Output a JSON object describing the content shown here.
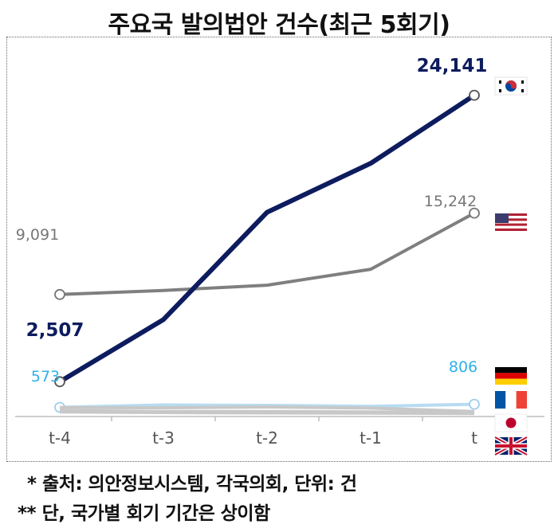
{
  "title": "주요국 발의법안 건수(최근 5회기)",
  "notes": {
    "source": "* 출처: 의안정보시스템, 각국의회, 단위: 건",
    "caveat": "** 단, 국가별 회기 기간은 상이함"
  },
  "chart_data": {
    "type": "line",
    "categories": [
      "t-4",
      "t-3",
      "t-2",
      "t-1",
      "t"
    ],
    "ylim": [
      0,
      25500
    ],
    "grid": false,
    "series": [
      {
        "name": "Korea",
        "flag": "korea-flag",
        "color": "#0d1c5e",
        "emphasis": true,
        "values": [
          2507,
          7200,
          15300,
          19000,
          24141
        ],
        "labels": {
          "first": "2,507",
          "last": "24,141"
        }
      },
      {
        "name": "USA",
        "flag": "usa-flag",
        "color": "#7f7f7f",
        "emphasis": false,
        "values": [
          9091,
          9400,
          9800,
          11000,
          15242
        ],
        "labels": {
          "first": "9,091",
          "last": "15,242"
        }
      },
      {
        "name": "Germany",
        "flag": "germany-flag",
        "color": "#b7dcf1",
        "emphasis": false,
        "values": [
          573,
          750,
          720,
          650,
          806
        ],
        "labels": {
          "first": "573",
          "last": "806"
        }
      },
      {
        "name": "France",
        "flag": "france-flag",
        "color": "#c8c8c8",
        "emphasis": false,
        "values": [
          560,
          540,
          600,
          520,
          250
        ],
        "labels": {}
      },
      {
        "name": "Japan",
        "flag": "japan-flag",
        "color": "#c8c8c8",
        "emphasis": false,
        "values": [
          330,
          260,
          260,
          220,
          170
        ],
        "labels": {}
      },
      {
        "name": "UK",
        "flag": "uk-flag",
        "color": "#c8c8c8",
        "emphasis": false,
        "values": [
          220,
          180,
          150,
          130,
          110
        ],
        "labels": {}
      }
    ]
  }
}
